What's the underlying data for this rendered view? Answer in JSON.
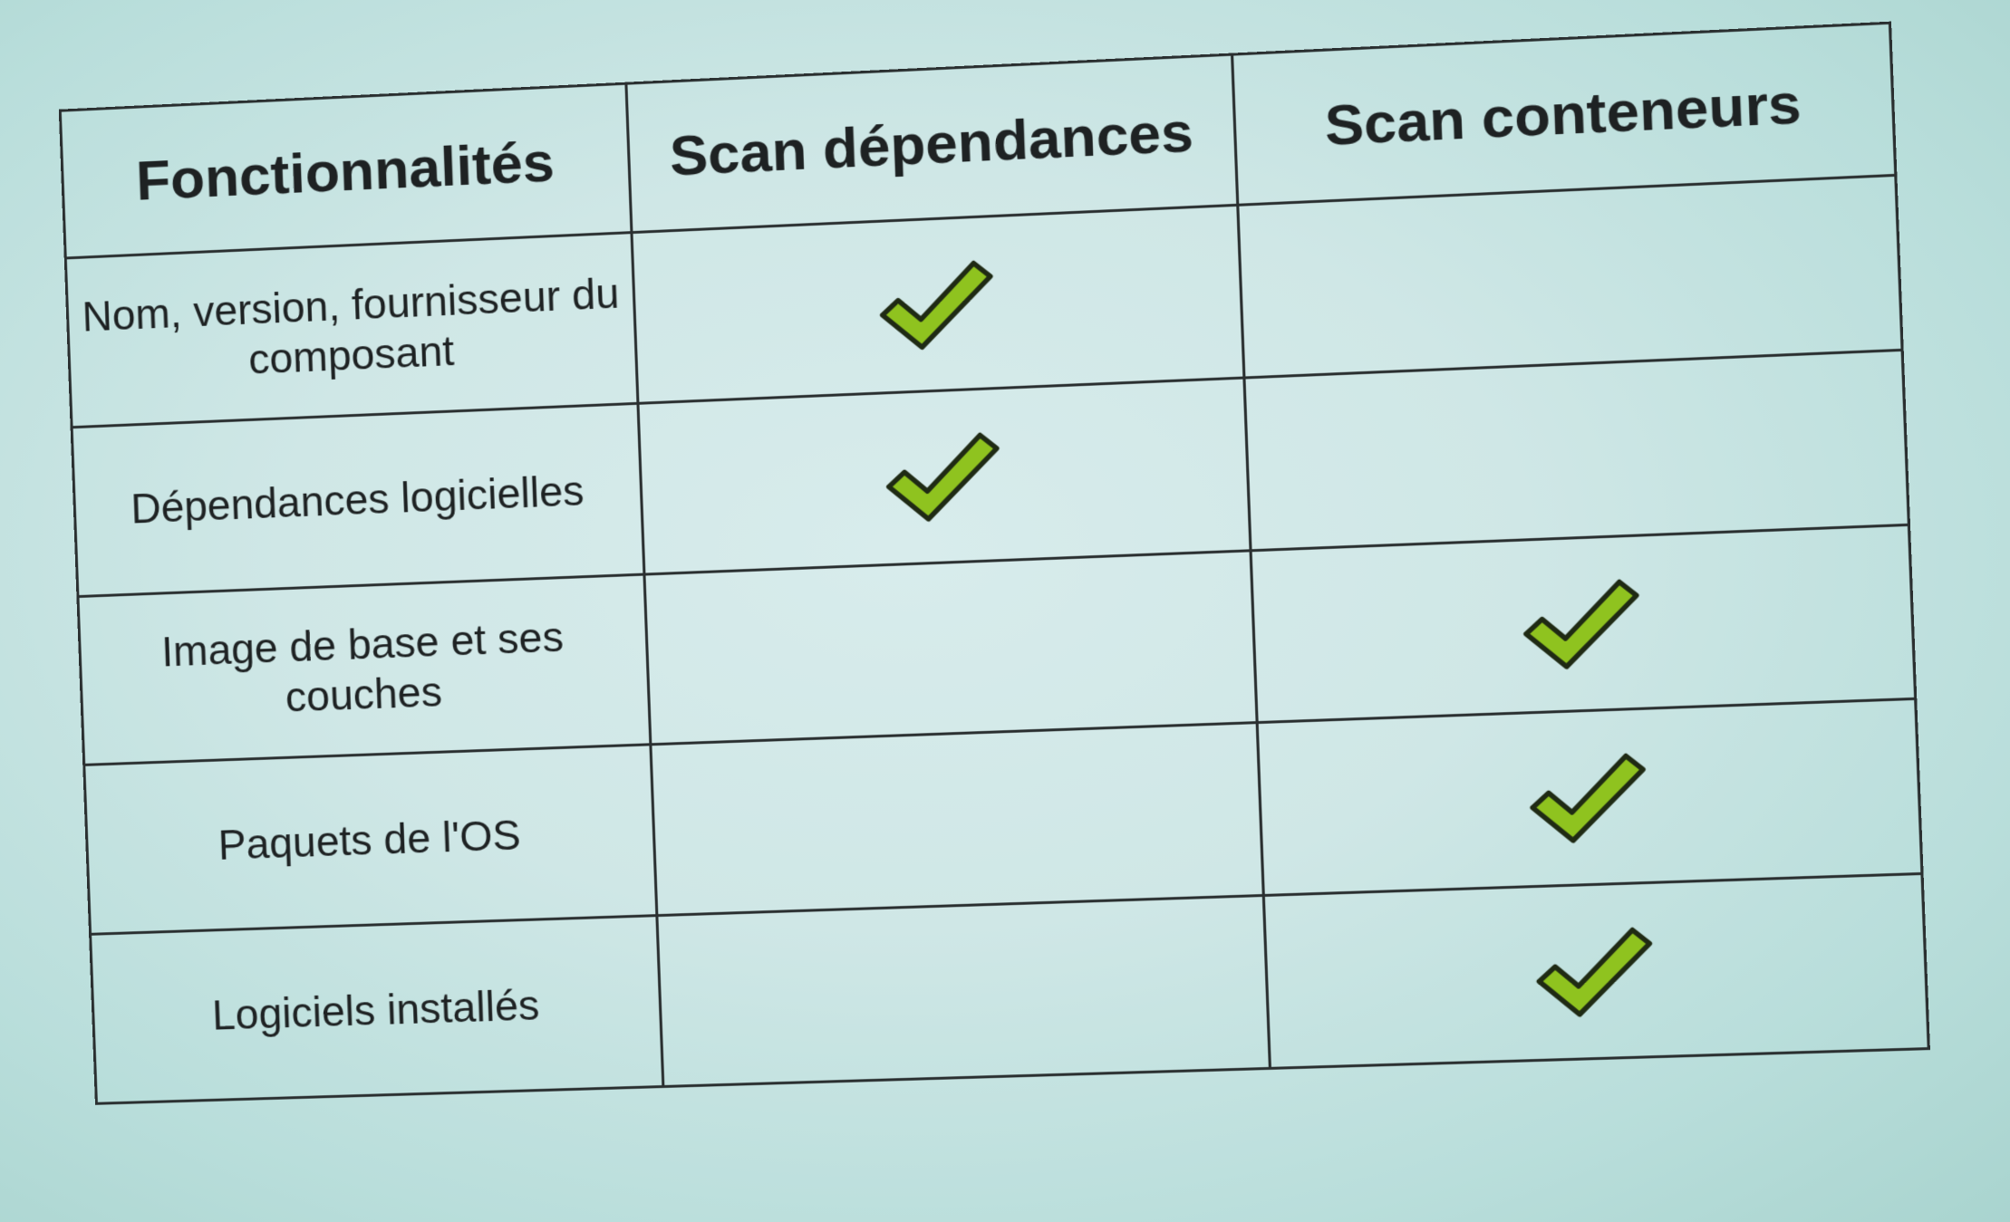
{
  "table": {
    "headers": [
      "Fonctionnalités",
      "Scan dépendances",
      "Scan conteneurs"
    ],
    "rows": [
      {
        "label": "Nom, version, fournisseur du composant",
        "scan_dependances": true,
        "scan_conteneurs": false
      },
      {
        "label": "Dépendances logicielles",
        "scan_dependances": true,
        "scan_conteneurs": false
      },
      {
        "label": "Image de base et ses couches",
        "scan_dependances": false,
        "scan_conteneurs": true
      },
      {
        "label": "Paquets de l'OS",
        "scan_dependances": false,
        "scan_conteneurs": true
      },
      {
        "label": "Logiciels installés",
        "scan_dependances": false,
        "scan_conteneurs": true
      }
    ]
  },
  "colors": {
    "check_fill": "#8fc31f",
    "check_stroke": "#1f2a14",
    "grid_line": "#2a2f30"
  },
  "icons": {
    "check": "checkmark-icon"
  }
}
